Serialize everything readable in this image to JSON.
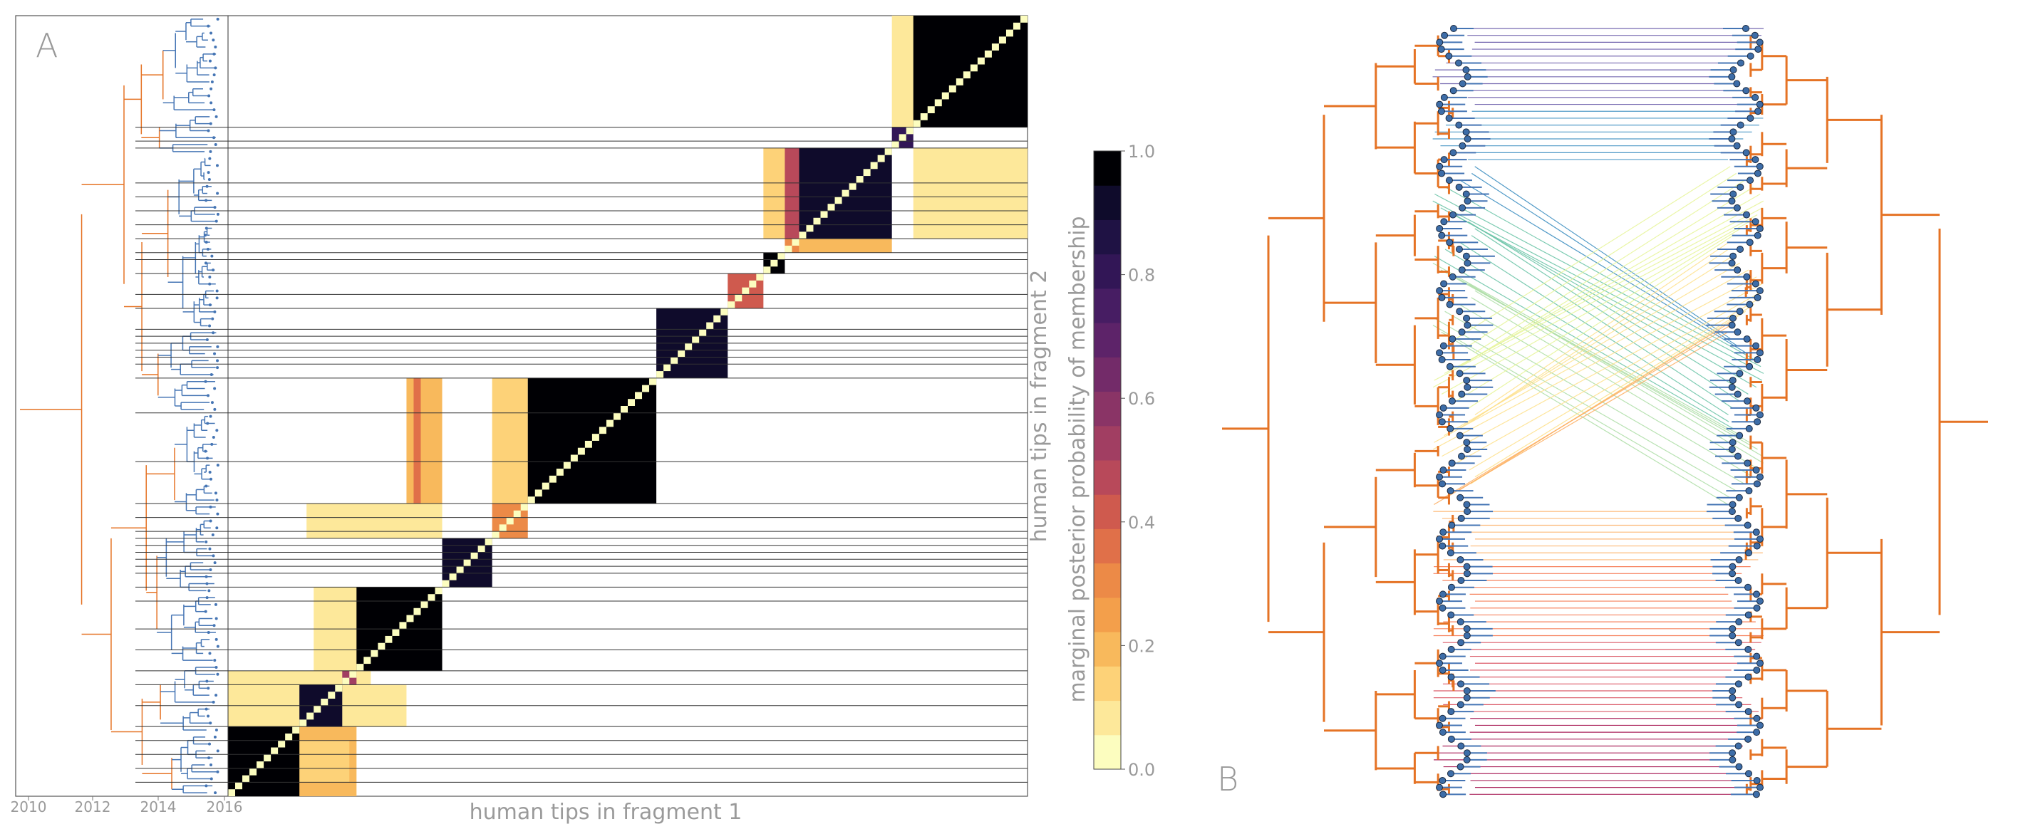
{
  "panel_a_label": "A",
  "panel_b_label": "B",
  "chart_data": [
    {
      "type": "heatmap",
      "xlabel": "human tips in fragment 1",
      "ylabel": "human tips in fragment 2",
      "x_ticks": [
        "2010",
        "2012",
        "2014",
        "2016"
      ],
      "colorbar": {
        "label": "marginal posterior probability of membership",
        "ticks": [
          "0.0",
          "0.2",
          "0.4",
          "0.6",
          "0.8",
          "1.0"
        ],
        "range": [
          0,
          1
        ],
        "colors": [
          "#fcfdbf",
          "#fde89a",
          "#fdd278",
          "#f8b95c",
          "#f39f4b",
          "#ec8a47",
          "#e07049",
          "#cf5a4e",
          "#b8495a",
          "#a13e62",
          "#8a3466",
          "#732b69",
          "#5d2369",
          "#471d63",
          "#321656",
          "#1f1244",
          "#0f0b2b",
          "#000004"
        ]
      },
      "blocks": [
        {
          "tips": [
            0,
            10
          ],
          "p": 0.98
        },
        {
          "tips": [
            10,
            16
          ],
          "p": 0.95
        },
        {
          "tips": [
            16,
            18
          ],
          "p": 0.5
        },
        {
          "tips": [
            18,
            30
          ],
          "p": 0.98
        },
        {
          "tips": [
            30,
            37
          ],
          "p": 0.95
        },
        {
          "tips": [
            37,
            42
          ],
          "p": 0.3
        },
        {
          "tips": [
            42,
            60
          ],
          "p": 0.99
        },
        {
          "tips": [
            60,
            70
          ],
          "p": 0.96
        },
        {
          "tips": [
            70,
            75
          ],
          "p": 0.4
        },
        {
          "tips": [
            75,
            78
          ],
          "p": 0.98
        },
        {
          "tips": [
            78,
            80
          ],
          "p": 0.3
        },
        {
          "tips": [
            80,
            93
          ],
          "p": 0.97
        },
        {
          "tips": [
            93,
            96
          ],
          "p": 0.8
        },
        {
          "tips": [
            96,
            112
          ],
          "p": 1.0
        }
      ],
      "off_blocks": [
        {
          "x": [
            93,
            110
          ],
          "y": [
            96,
            112
          ],
          "p": 0.08
        },
        {
          "x": [
            75,
            85
          ],
          "y": [
            80,
            93
          ],
          "p": 0.12
        },
        {
          "x": [
            78,
            80
          ],
          "y": [
            80,
            93
          ],
          "p": 0.45
        },
        {
          "x": [
            80,
            84
          ],
          "y": [
            82,
            92
          ],
          "p": 0.3
        },
        {
          "x": [
            96,
            112
          ],
          "y": [
            80,
            93
          ],
          "p": 0.08
        },
        {
          "x": [
            80,
            93
          ],
          "y": [
            78,
            80
          ],
          "p": 0.15
        },
        {
          "x": [
            25,
            30
          ],
          "y": [
            42,
            60
          ],
          "p": 0.15
        },
        {
          "x": [
            26,
            27
          ],
          "y": [
            42,
            60
          ],
          "p": 0.35
        },
        {
          "x": [
            37,
            42
          ],
          "y": [
            42,
            60
          ],
          "p": 0.12
        },
        {
          "x": [
            11,
            30
          ],
          "y": [
            37,
            42
          ],
          "p": 0.08
        },
        {
          "x": [
            12,
            19
          ],
          "y": [
            18,
            30
          ],
          "p": 0.06
        },
        {
          "x": [
            10,
            25
          ],
          "y": [
            10,
            16
          ],
          "p": 0.06
        },
        {
          "x": [
            2,
            18
          ],
          "y": [
            0,
            10
          ],
          "p": 0.15
        },
        {
          "x": [
            5,
            8
          ],
          "y": [
            4,
            9
          ],
          "p": 0.4
        },
        {
          "x": [
            10,
            17
          ],
          "y": [
            2,
            8
          ],
          "p": 0.12
        },
        {
          "x": [
            0,
            20
          ],
          "y": [
            10,
            18
          ],
          "p": 0.06
        }
      ],
      "n_tips": 112
    },
    {
      "type": "tanglegram",
      "n_tips": 112,
      "line_colors": [
        "#5e4fa2",
        "#3288bd",
        "#66c2a5",
        "#abdda4",
        "#e6f598",
        "#fee08b",
        "#fdae61",
        "#f46d43",
        "#d53e4f",
        "#9e0142"
      ],
      "branch_colors": {
        "human": "#4575b4",
        "reservoir": "#e57325",
        "other": "#888888"
      },
      "tip_color": "#3d6da8"
    }
  ]
}
